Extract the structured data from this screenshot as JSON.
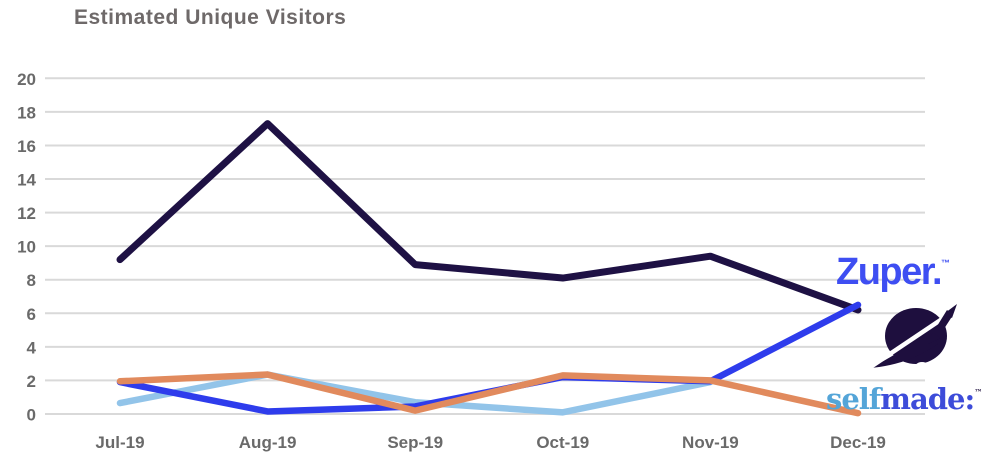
{
  "title": "Estimated Unique Visitors",
  "axis": {
    "title_color": "#6e6969",
    "label_color": "#6a6a6a",
    "grid_color": "#d9d9d9"
  },
  "chart_data": {
    "type": "line",
    "title": "Estimated Unique Visitors",
    "categories": [
      "Jul-19",
      "Aug-19",
      "Sep-19",
      "Oct-19",
      "Nov-19",
      "Dec-19"
    ],
    "series": [
      {
        "name": "zuper-dark-navy",
        "color": "#1e1144",
        "stroke_width": 7,
        "values": [
          9.2,
          17.3,
          8.9,
          8.1,
          9.4,
          6.2
        ]
      },
      {
        "name": "selfmade-light-blue",
        "color": "#92c4e9",
        "stroke_width": 6.5,
        "values": [
          0.65,
          2.35,
          0.7,
          0.1,
          1.9,
          null
        ]
      },
      {
        "name": "zuper-royal-blue",
        "color": "#2e3cec",
        "stroke_width": 6.5,
        "values": [
          1.9,
          0.15,
          0.45,
          2.2,
          1.95,
          6.5
        ]
      },
      {
        "name": "selfmade-orange",
        "color": "#e18a5d",
        "stroke_width": 6.5,
        "values": [
          1.95,
          2.35,
          0.2,
          2.3,
          2.0,
          0.05
        ]
      }
    ],
    "ylim": [
      0,
      20
    ],
    "yticks": [
      0,
      2,
      4,
      6,
      8,
      10,
      12,
      14,
      16,
      18,
      20
    ],
    "xlabel": "",
    "ylabel": "",
    "grid": "horizontal-only",
    "legend": "none-brand-logos-at-right"
  },
  "logos": {
    "zuper": {
      "wordmark": "Zuper",
      "period": ".",
      "trademark": "™",
      "color": "#3e4ef2"
    },
    "selfmade": {
      "word_light": "self",
      "word_dark": "made",
      "colon": ":",
      "trademark": "™",
      "color_light": "#54a5d8",
      "color_dark": "#3d4cd9",
      "mark_color": "#1e0f3e",
      "mark": "planet-rocket-swoosh"
    }
  }
}
